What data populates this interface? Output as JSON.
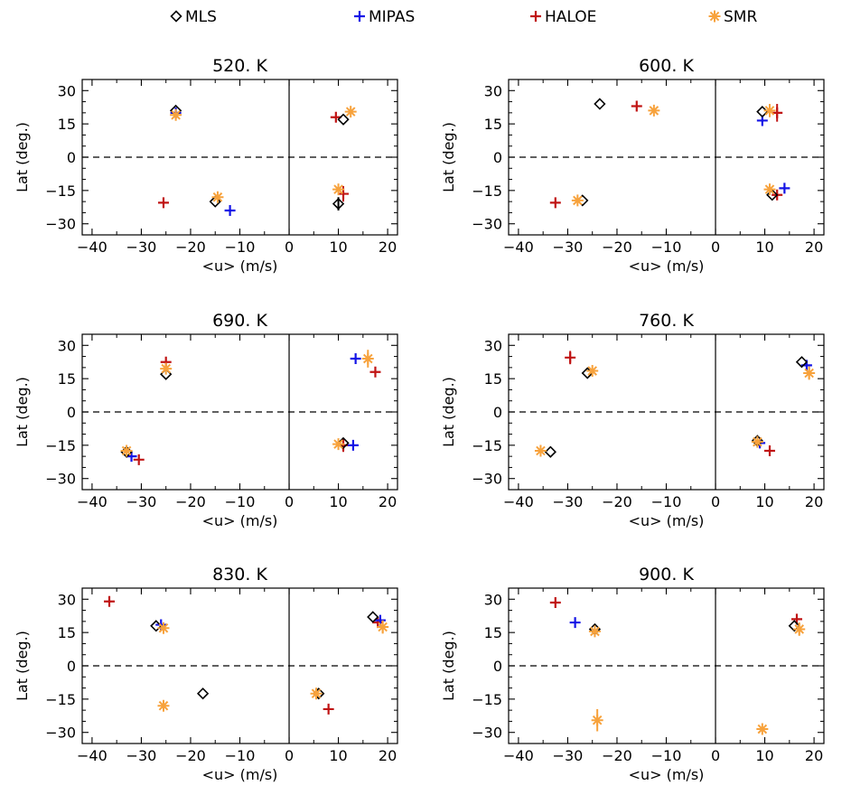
{
  "colors": {
    "MLS": "#000000",
    "MIPAS": "#1414e6",
    "HALOE": "#c01414",
    "SMR": "#f7a23c"
  },
  "legend": [
    {
      "name": "MLS",
      "marker": "diamond",
      "color": "#000000"
    },
    {
      "name": "MIPAS",
      "marker": "plus",
      "color": "#1414e6"
    },
    {
      "name": "HALOE",
      "marker": "plus",
      "color": "#c01414"
    },
    {
      "name": "SMR",
      "marker": "asterisk",
      "color": "#f7a23c"
    }
  ],
  "chart_data": [
    {
      "type": "scatter",
      "title": "520. K",
      "xlabel": "<u> (m/s)",
      "ylabel": "Lat (deg.)",
      "xlim": [
        -42,
        22
      ],
      "ylim": [
        -35,
        35
      ],
      "xticks": [
        -40,
        -30,
        -20,
        -10,
        0,
        10,
        20
      ],
      "yticks": [
        30,
        15,
        0,
        -15,
        -30
      ],
      "reference_lines": {
        "horizontal_dashed_at_y": 0,
        "vertical_solid_at_x": 0
      },
      "series": [
        {
          "name": "MLS",
          "points": [
            {
              "x": -23,
              "y": 21
            },
            {
              "x": -15,
              "y": -20
            },
            {
              "x": 11,
              "y": 17
            },
            {
              "x": 10,
              "y": -21,
              "err": 3
            }
          ]
        },
        {
          "name": "MIPAS",
          "points": [
            {
              "x": -12,
              "y": -24
            },
            {
              "x": -23,
              "y": 20
            }
          ]
        },
        {
          "name": "HALOE",
          "points": [
            {
              "x": -25.5,
              "y": -20.5
            },
            {
              "x": 9.5,
              "y": 18
            },
            {
              "x": 11,
              "y": -16.5,
              "err": 3.5
            }
          ]
        },
        {
          "name": "SMR",
          "points": [
            {
              "x": -23,
              "y": 19
            },
            {
              "x": -14.5,
              "y": -18
            },
            {
              "x": 12.5,
              "y": 20.5
            },
            {
              "x": 10,
              "y": -14.5
            }
          ]
        }
      ]
    },
    {
      "type": "scatter",
      "title": "600. K",
      "xlabel": "<u> (m/s)",
      "ylabel": "Lat (deg.)",
      "xlim": [
        -42,
        22
      ],
      "ylim": [
        -35,
        35
      ],
      "xticks": [
        -40,
        -30,
        -20,
        -10,
        0,
        10,
        20
      ],
      "yticks": [
        30,
        15,
        0,
        -15,
        -30
      ],
      "reference_lines": {
        "horizontal_dashed_at_y": 0,
        "vertical_solid_at_x": 0
      },
      "series": [
        {
          "name": "MLS",
          "points": [
            {
              "x": -23.5,
              "y": 24
            },
            {
              "x": -27,
              "y": -19.5
            },
            {
              "x": 9.5,
              "y": 20.5
            },
            {
              "x": 11.5,
              "y": -17
            }
          ]
        },
        {
          "name": "MIPAS",
          "points": [
            {
              "x": 9.5,
              "y": 16.5
            },
            {
              "x": 14,
              "y": -14
            }
          ]
        },
        {
          "name": "HALOE",
          "points": [
            {
              "x": -16,
              "y": 23
            },
            {
              "x": -32.5,
              "y": -20.5
            },
            {
              "x": 12.5,
              "y": 20,
              "err": 4
            },
            {
              "x": 12.5,
              "y": -17
            }
          ]
        },
        {
          "name": "SMR",
          "points": [
            {
              "x": -12.5,
              "y": 21
            },
            {
              "x": -28,
              "y": -19.5
            },
            {
              "x": 11,
              "y": 21,
              "err": 3
            },
            {
              "x": 11,
              "y": -14.5
            }
          ]
        }
      ]
    },
    {
      "type": "scatter",
      "title": "690. K",
      "xlabel": "<u> (m/s)",
      "ylabel": "Lat (deg.)",
      "xlim": [
        -42,
        22
      ],
      "ylim": [
        -35,
        35
      ],
      "xticks": [
        -40,
        -30,
        -20,
        -10,
        0,
        10,
        20
      ],
      "yticks": [
        30,
        15,
        0,
        -15,
        -30
      ],
      "reference_lines": {
        "horizontal_dashed_at_y": 0,
        "vertical_solid_at_x": 0
      },
      "series": [
        {
          "name": "MLS",
          "points": [
            {
              "x": -25,
              "y": 17
            },
            {
              "x": -33,
              "y": -18
            },
            {
              "x": 11,
              "y": -14
            }
          ]
        },
        {
          "name": "MIPAS",
          "points": [
            {
              "x": 13.5,
              "y": 24
            },
            {
              "x": -32,
              "y": -20
            },
            {
              "x": 13,
              "y": -15
            }
          ]
        },
        {
          "name": "HALOE",
          "points": [
            {
              "x": -25,
              "y": 22.5
            },
            {
              "x": -30.5,
              "y": -21.5
            },
            {
              "x": 17.5,
              "y": 18
            },
            {
              "x": 11,
              "y": -15,
              "err": 3
            }
          ]
        },
        {
          "name": "SMR",
          "points": [
            {
              "x": -25,
              "y": 19.5
            },
            {
              "x": -33,
              "y": -17.5
            },
            {
              "x": 16,
              "y": 24,
              "err": 4
            },
            {
              "x": 10,
              "y": -14.5
            }
          ]
        }
      ]
    },
    {
      "type": "scatter",
      "title": "760. K",
      "xlabel": "<u> (m/s)",
      "ylabel": "Lat (deg.)",
      "xlim": [
        -42,
        22
      ],
      "ylim": [
        -35,
        35
      ],
      "xticks": [
        -40,
        -30,
        -20,
        -10,
        0,
        10,
        20
      ],
      "yticks": [
        30,
        15,
        0,
        -15,
        -30
      ],
      "reference_lines": {
        "horizontal_dashed_at_y": 0,
        "vertical_solid_at_x": 0
      },
      "series": [
        {
          "name": "MLS",
          "points": [
            {
              "x": -26,
              "y": 17.5
            },
            {
              "x": -33.5,
              "y": -18
            },
            {
              "x": 17.5,
              "y": 22.5
            },
            {
              "x": 8.5,
              "y": -13
            }
          ]
        },
        {
          "name": "MIPAS",
          "points": [
            {
              "x": 18.5,
              "y": 21
            },
            {
              "x": 9,
              "y": -14
            }
          ]
        },
        {
          "name": "HALOE",
          "points": [
            {
              "x": -29.5,
              "y": 24.5,
              "err": 3
            },
            {
              "x": 11,
              "y": -17.5
            }
          ]
        },
        {
          "name": "SMR",
          "points": [
            {
              "x": -25,
              "y": 18.5
            },
            {
              "x": -35.5,
              "y": -17.5
            },
            {
              "x": 19,
              "y": 17.5,
              "err": 3
            },
            {
              "x": 8.5,
              "y": -13.5
            }
          ]
        }
      ]
    },
    {
      "type": "scatter",
      "title": "830. K",
      "xlabel": "<u> (m/s)",
      "ylabel": "Lat (deg.)",
      "xlim": [
        -42,
        22
      ],
      "ylim": [
        -35,
        35
      ],
      "xticks": [
        -40,
        -30,
        -20,
        -10,
        0,
        10,
        20
      ],
      "yticks": [
        30,
        15,
        0,
        -15,
        -30
      ],
      "reference_lines": {
        "horizontal_dashed_at_y": 0,
        "vertical_solid_at_x": 0
      },
      "series": [
        {
          "name": "MLS",
          "points": [
            {
              "x": -27,
              "y": 18
            },
            {
              "x": -17.5,
              "y": -12.5
            },
            {
              "x": 17,
              "y": 22
            },
            {
              "x": 6,
              "y": -12.5
            }
          ]
        },
        {
          "name": "MIPAS",
          "points": [
            {
              "x": -26,
              "y": 18.5
            },
            {
              "x": 18.5,
              "y": 20.5
            }
          ]
        },
        {
          "name": "HALOE",
          "points": [
            {
              "x": -36.5,
              "y": 29
            },
            {
              "x": 8,
              "y": -19.5
            },
            {
              "x": 18,
              "y": 19.5
            }
          ]
        },
        {
          "name": "SMR",
          "points": [
            {
              "x": -25.5,
              "y": 17
            },
            {
              "x": -25.5,
              "y": -18
            },
            {
              "x": 19,
              "y": 17.5,
              "err": 3
            },
            {
              "x": 5.5,
              "y": -12.5
            }
          ]
        }
      ]
    },
    {
      "type": "scatter",
      "title": "900. K",
      "xlabel": "<u> (m/s)",
      "ylabel": "Lat (deg.)",
      "xlim": [
        -42,
        22
      ],
      "ylim": [
        -35,
        35
      ],
      "xticks": [
        -40,
        -30,
        -20,
        -10,
        0,
        10,
        20
      ],
      "yticks": [
        30,
        15,
        0,
        -15,
        -30
      ],
      "reference_lines": {
        "horizontal_dashed_at_y": 0,
        "vertical_solid_at_x": 0
      },
      "series": [
        {
          "name": "MLS",
          "points": [
            {
              "x": -24.5,
              "y": 16.5
            },
            {
              "x": 16,
              "y": 18
            }
          ]
        },
        {
          "name": "MIPAS",
          "points": [
            {
              "x": -28.5,
              "y": 19.5
            }
          ]
        },
        {
          "name": "HALOE",
          "points": [
            {
              "x": -32.5,
              "y": 28.5
            },
            {
              "x": 16.5,
              "y": 21
            }
          ]
        },
        {
          "name": "SMR",
          "points": [
            {
              "x": -24.5,
              "y": 15.5
            },
            {
              "x": -24,
              "y": -24.5,
              "err": 5
            },
            {
              "x": 17,
              "y": 16.5,
              "err": 3
            },
            {
              "x": 9.5,
              "y": -28.5
            }
          ]
        }
      ]
    }
  ]
}
